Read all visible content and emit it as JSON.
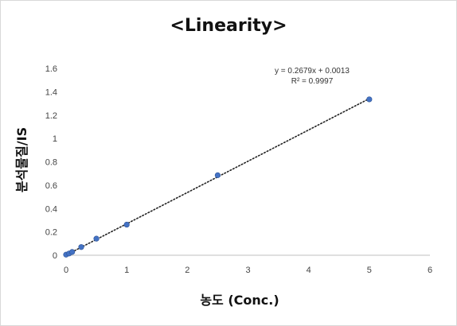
{
  "chart_data": {
    "type": "scatter",
    "title": "<Linearity>",
    "xlabel": "농도 (Conc.)",
    "ylabel": "분석물질/IS",
    "xlim": [
      0,
      6
    ],
    "ylim": [
      0,
      1.6
    ],
    "xticks": [
      0,
      1,
      2,
      3,
      4,
      5,
      6
    ],
    "yticks": [
      0,
      0.2,
      0.4,
      0.6,
      0.8,
      1,
      1.2,
      1.4,
      1.6
    ],
    "grid": false,
    "legend": "none",
    "point_color": "#4472c4",
    "trendline": {
      "type": "linear",
      "style": "dotted",
      "slope": 0.2679,
      "intercept": 0.0013,
      "equation": "y = 0.2679x + 0.0013",
      "r_squared": "R² = 0.9997"
    },
    "series": [
      {
        "x": [
          0,
          0.05,
          0.1,
          0.25,
          0.5,
          1,
          2.5,
          5
        ],
        "y": [
          0.005,
          0.015,
          0.028,
          0.07,
          0.142,
          0.262,
          0.685,
          1.335
        ]
      }
    ]
  }
}
